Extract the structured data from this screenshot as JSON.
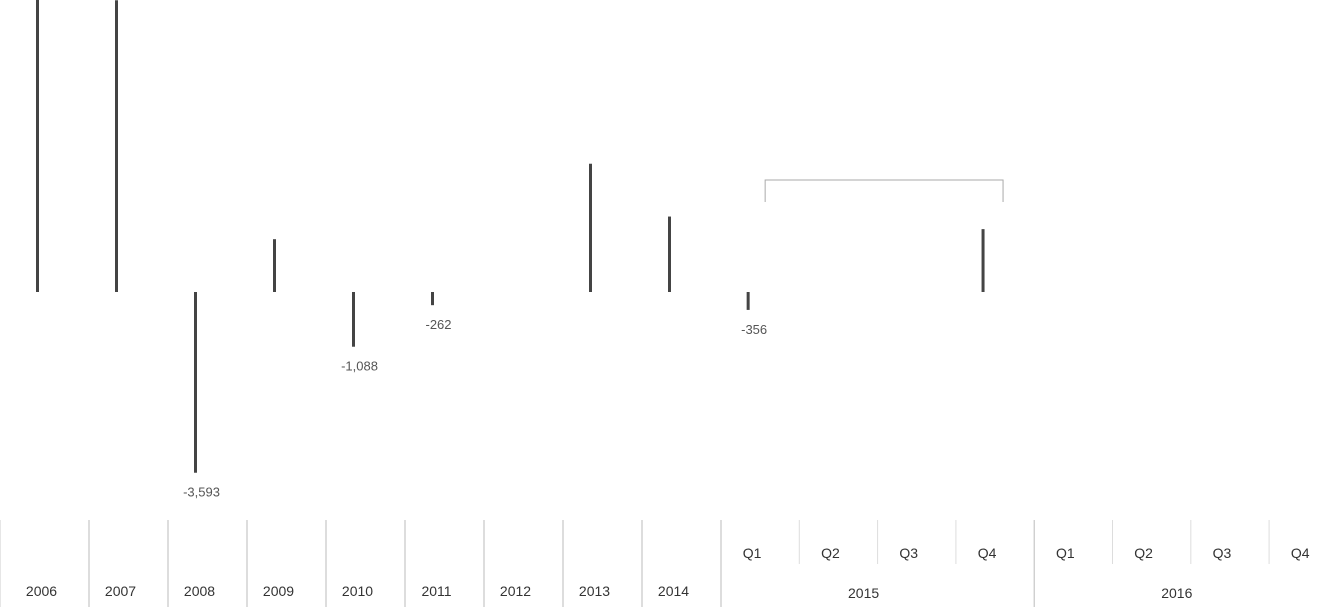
{
  "chart_data": {
    "type": "bar",
    "title": "",
    "xlabel": "",
    "ylabel": "",
    "categories": [
      "2006",
      "2007",
      "2008",
      "2009",
      "2010",
      "2011",
      "2012",
      "2013",
      "2014",
      "Q1",
      "Q2",
      "Q3",
      "Q4",
      "Q1",
      "Q2",
      "Q3",
      "Q4"
    ],
    "groups": [
      {
        "label": "2015",
        "categories": [
          "Q1",
          "Q2",
          "Q3",
          "Q4"
        ]
      },
      {
        "label": "2016",
        "categories": [
          "Q1",
          "Q2",
          "Q3",
          "Q4"
        ]
      }
    ],
    "values": [
      6100,
      5800,
      -3593,
      1050,
      -1088,
      -262,
      0,
      2550,
      1500,
      -356,
      0,
      0,
      1250,
      0,
      0,
      0,
      0
    ],
    "data_labels": [
      "",
      "",
      "-3,593",
      "",
      "-1,088",
      "-262",
      "",
      "",
      "",
      "-356",
      "",
      "",
      "",
      "",
      "",
      "",
      ""
    ],
    "ylim": [
      -4000,
      6500
    ],
    "grid": false,
    "legend": "none",
    "bar_color": "#444444"
  }
}
